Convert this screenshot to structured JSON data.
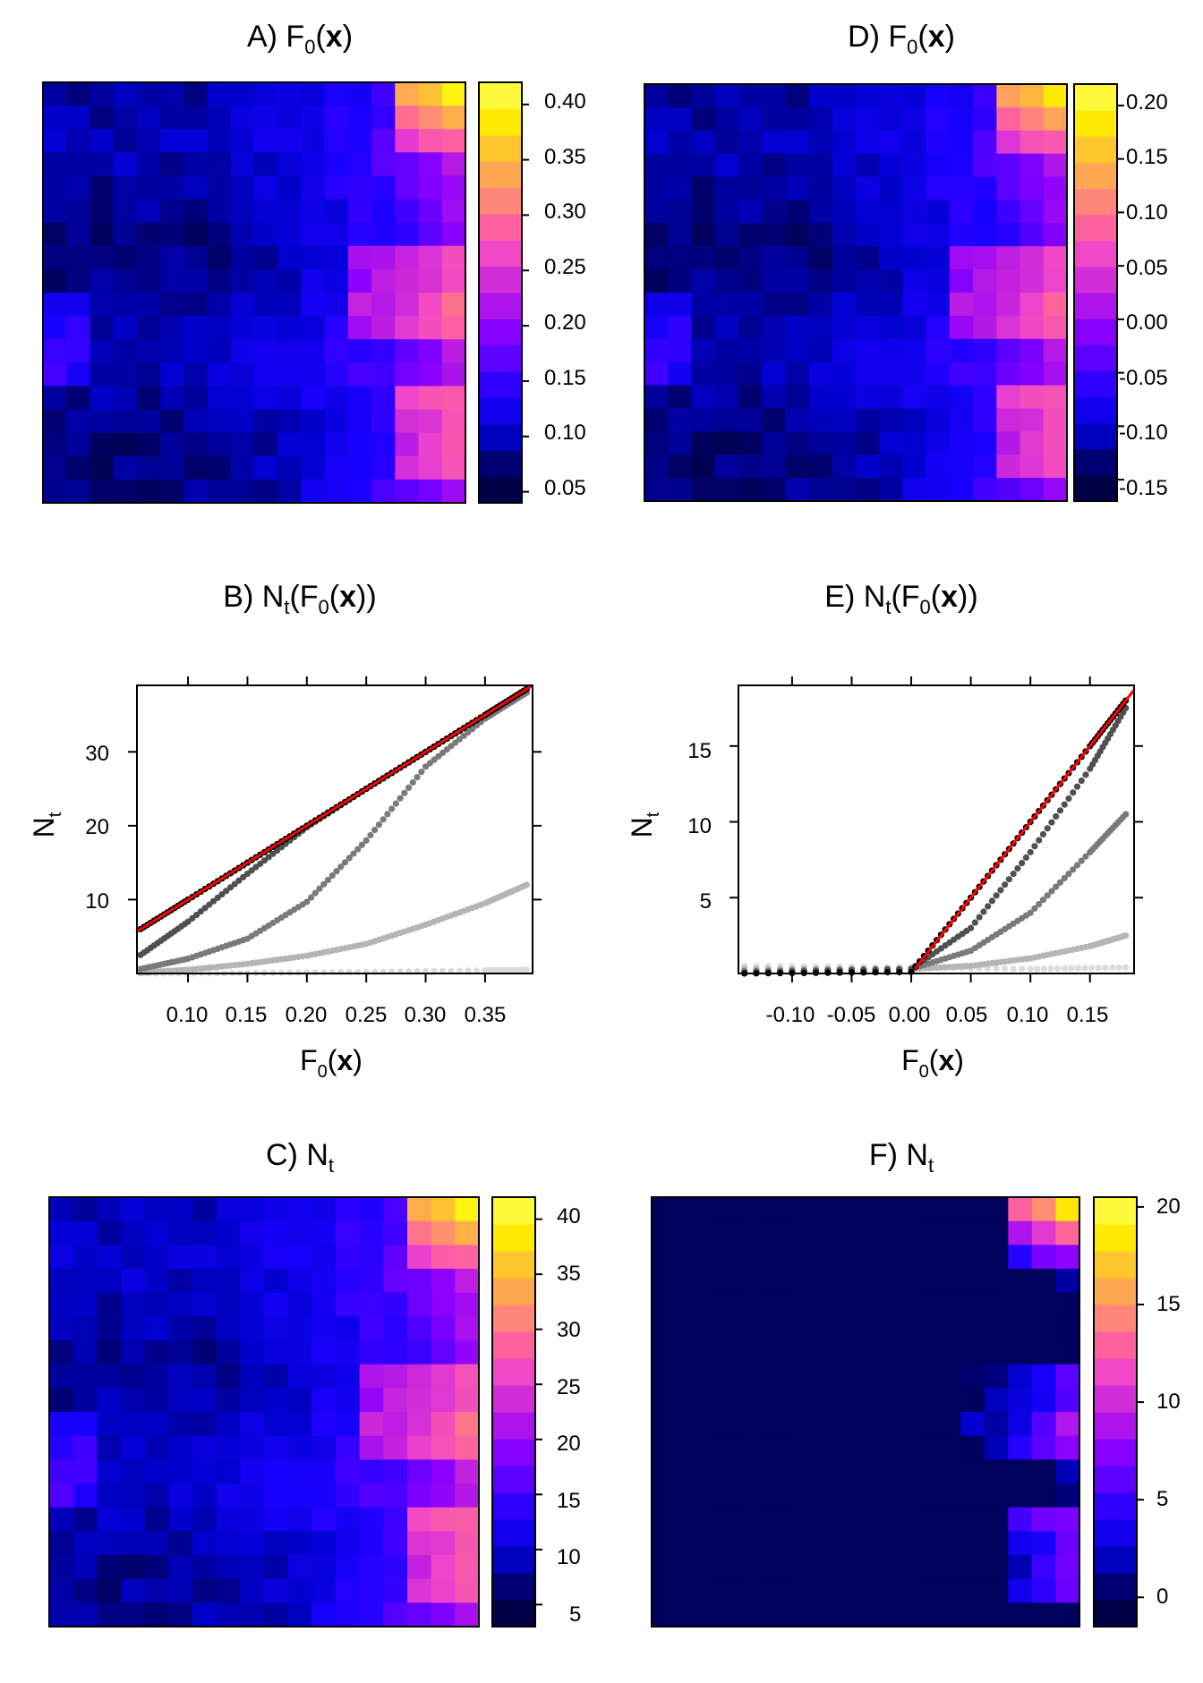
{
  "figure": {
    "panel_A": {
      "title_prefix": "A)",
      "title_main": "F",
      "title_sub": "0",
      "title_arg": "x",
      "colorbar_ticks": [
        "0.40",
        "0.35",
        "0.30",
        "0.25",
        "0.20",
        "0.15",
        "0.10",
        "0.05"
      ]
    },
    "panel_D": {
      "title_prefix": "D)",
      "title_main": "F",
      "title_sub": "0",
      "title_arg": "x",
      "colorbar_ticks": [
        "0.20",
        "0.15",
        "0.10",
        "0.05",
        "0.00",
        "-0.05",
        "-0.10",
        "-0.15"
      ]
    },
    "panel_C": {
      "title_prefix": "C)",
      "title_main": "N",
      "title_sub": "t",
      "colorbar_ticks": [
        "40",
        "35",
        "30",
        "25",
        "20",
        "15",
        "10",
        "5"
      ]
    },
    "panel_F": {
      "title_prefix": "F)",
      "title_main": "N",
      "title_sub": "t",
      "colorbar_ticks": [
        "20",
        "15",
        "10",
        "5",
        "0"
      ]
    },
    "panel_B": {
      "title_prefix": "B)",
      "title_main": "N",
      "title_sub": "t",
      "title_inner": "F",
      "title_inner_sub": "0",
      "title_arg": "x",
      "xlabel_main": "F",
      "xlabel_sub": "0",
      "xlabel_arg": "x",
      "ylabel_main": "N",
      "ylabel_sub": "t",
      "xticks": [
        "0.10",
        "0.15",
        "0.20",
        "0.25",
        "0.30",
        "0.35"
      ],
      "yticks": [
        "10",
        "20",
        "30"
      ]
    },
    "panel_E": {
      "title_prefix": "E)",
      "title_main": "N",
      "title_sub": "t",
      "title_inner": "F",
      "title_inner_sub": "0",
      "title_arg": "x",
      "xlabel_main": "F",
      "xlabel_sub": "0",
      "xlabel_arg": "x",
      "ylabel_main": "N",
      "ylabel_sub": "t",
      "xticks": [
        "-0.10",
        "-0.05",
        "0.00",
        "0.05",
        "0.10",
        "0.15"
      ],
      "yticks": [
        "5",
        "10",
        "15"
      ]
    }
  },
  "chart_data": [
    {
      "id": "A",
      "type": "heatmap",
      "title": "A) F0(x)",
      "nx": 18,
      "ny": 18,
      "zrange": [
        0.04,
        0.42
      ],
      "colorbar_ticks": [
        0.05,
        0.1,
        0.15,
        0.2,
        0.25,
        0.3,
        0.35,
        0.4
      ],
      "palette": [
        "#000033",
        "#000066",
        "#0000cc",
        "#1a00ff",
        "#5500ff",
        "#8c00ff",
        "#c01fe0",
        "#ee44cc",
        "#ff6699",
        "#ff9966",
        "#ffc033",
        "#fff000",
        "#ffff60"
      ],
      "note": "18x18 grid of F0 values; low (dark blue) at left, high (pink/yellow) along the right edge, maximum ~0.42 at upper right"
    },
    {
      "id": "D",
      "type": "heatmap",
      "title": "D) F0(x)",
      "nx": 18,
      "ny": 18,
      "zrange": [
        -0.17,
        0.22
      ],
      "colorbar_ticks": [
        -0.15,
        -0.1,
        -0.05,
        0.0,
        0.05,
        0.1,
        0.15,
        0.2
      ],
      "note": "same spatial field as panel A shifted by about -0.21"
    },
    {
      "id": "C",
      "type": "heatmap",
      "title": "C) Nt",
      "nx": 18,
      "ny": 18,
      "zrange": [
        3,
        42
      ],
      "colorbar_ticks": [
        5,
        10,
        15,
        20,
        25,
        30,
        35,
        40
      ],
      "note": "approximately 100 x F0 from panel A"
    },
    {
      "id": "F",
      "type": "heatmap",
      "title": "F) Nt",
      "nx": 18,
      "ny": 18,
      "zrange": [
        -1.5,
        20.5
      ],
      "colorbar_ticks": [
        0,
        5,
        10,
        15,
        20
      ],
      "note": "approximately 100 x max(F0 from panel D, 0); zero over most of the field, up to ~20 at upper right"
    },
    {
      "id": "B",
      "type": "scatter",
      "title": "B) Nt(F0(x))",
      "xlabel": "F0(x)",
      "ylabel": "Nt",
      "xlim": [
        0.057,
        0.39
      ],
      "ylim": [
        0,
        39
      ],
      "xticks": [
        0.1,
        0.15,
        0.2,
        0.25,
        0.3,
        0.35
      ],
      "yticks": [
        10,
        20,
        30
      ],
      "reference_line": {
        "color": "#ff0000",
        "points": [
          [
            0.057,
            5.7
          ],
          [
            0.39,
            39
          ]
        ]
      },
      "series": [
        {
          "name": "gray 1",
          "color": "#000000",
          "points": [
            [
              0.06,
              6.0
            ],
            [
              0.1,
              10.0
            ],
            [
              0.15,
              15.0
            ],
            [
              0.2,
              20.0
            ],
            [
              0.25,
              25.0
            ],
            [
              0.3,
              30.0
            ],
            [
              0.35,
              35.0
            ],
            [
              0.385,
              38.5
            ]
          ]
        },
        {
          "name": "gray 2",
          "color": "#505050",
          "points": [
            [
              0.06,
              2.5
            ],
            [
              0.1,
              7.0
            ],
            [
              0.15,
              13.5
            ],
            [
              0.2,
              19.8
            ],
            [
              0.25,
              25.0
            ],
            [
              0.3,
              30.0
            ],
            [
              0.35,
              35.0
            ],
            [
              0.385,
              38.5
            ]
          ]
        },
        {
          "name": "gray 3",
          "color": "#7a7a7a",
          "points": [
            [
              0.06,
              0.6
            ],
            [
              0.1,
              2.0
            ],
            [
              0.15,
              4.7
            ],
            [
              0.2,
              9.7
            ],
            [
              0.25,
              18.0
            ],
            [
              0.3,
              28.0
            ],
            [
              0.35,
              34.5
            ],
            [
              0.385,
              38.0
            ]
          ]
        },
        {
          "name": "gray 4",
          "color": "#b5b5b5",
          "points": [
            [
              0.06,
              0.1
            ],
            [
              0.1,
              0.5
            ],
            [
              0.15,
              1.3
            ],
            [
              0.2,
              2.4
            ],
            [
              0.25,
              4.0
            ],
            [
              0.3,
              6.6
            ],
            [
              0.35,
              9.5
            ],
            [
              0.385,
              12.0
            ]
          ]
        },
        {
          "name": "gray 5",
          "color": "#dcdcdc",
          "points": [
            [
              0.06,
              0.0
            ],
            [
              0.15,
              0.05
            ],
            [
              0.25,
              0.2
            ],
            [
              0.35,
              0.4
            ],
            [
              0.385,
              0.5
            ]
          ]
        }
      ]
    },
    {
      "id": "E",
      "type": "scatter",
      "title": "E) Nt(F0(x))",
      "xlabel": "F0(x)",
      "ylabel": "Nt",
      "xlim": [
        -0.145,
        0.187
      ],
      "ylim": [
        0,
        19
      ],
      "xticks": [
        -0.1,
        -0.05,
        0.0,
        0.05,
        0.1,
        0.15
      ],
      "yticks": [
        5,
        10,
        15
      ],
      "reference_line": {
        "color": "#ff0000",
        "points": [
          [
            0.003,
            0.3
          ],
          [
            0.187,
            18.7
          ]
        ]
      },
      "series": [
        {
          "name": "gray 1",
          "color": "#000000",
          "points": [
            [
              -0.14,
              0.0
            ],
            [
              0.0,
              0.1
            ],
            [
              0.05,
              5.0
            ],
            [
              0.1,
              10.0
            ],
            [
              0.15,
              15.0
            ],
            [
              0.18,
              18.0
            ]
          ]
        },
        {
          "name": "gray 2",
          "color": "#505050",
          "points": [
            [
              -0.14,
              0.05
            ],
            [
              0.0,
              0.3
            ],
            [
              0.05,
              3.0
            ],
            [
              0.1,
              8.0
            ],
            [
              0.15,
              13.5
            ],
            [
              0.18,
              17.5
            ]
          ]
        },
        {
          "name": "gray 3",
          "color": "#7a7a7a",
          "points": [
            [
              -0.14,
              0.15
            ],
            [
              0.0,
              0.3
            ],
            [
              0.05,
              1.5
            ],
            [
              0.1,
              4.0
            ],
            [
              0.15,
              8.0
            ],
            [
              0.18,
              10.5
            ]
          ]
        },
        {
          "name": "gray 4",
          "color": "#b5b5b5",
          "points": [
            [
              -0.14,
              0.3
            ],
            [
              0.0,
              0.3
            ],
            [
              0.05,
              0.5
            ],
            [
              0.1,
              1.0
            ],
            [
              0.15,
              1.8
            ],
            [
              0.18,
              2.5
            ]
          ]
        },
        {
          "name": "gray 5",
          "color": "#dcdcdc",
          "points": [
            [
              -0.14,
              0.5
            ],
            [
              0.0,
              0.4
            ],
            [
              0.1,
              0.3
            ],
            [
              0.18,
              0.4
            ]
          ]
        }
      ]
    }
  ]
}
